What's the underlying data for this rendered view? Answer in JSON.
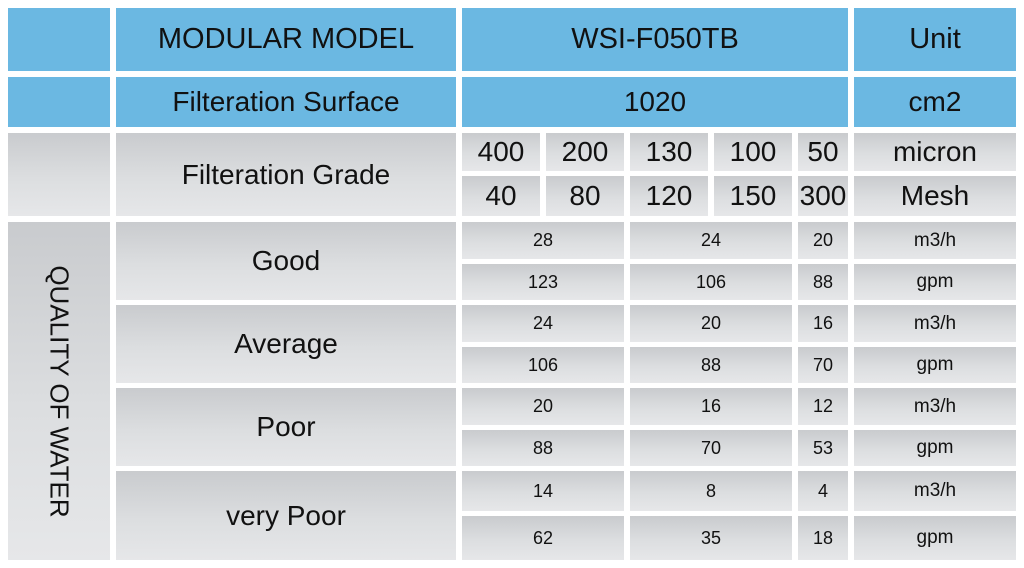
{
  "header": {
    "model_label": "MODULAR MODEL",
    "model_value": "WSI-F050TB",
    "unit_label": "Unit",
    "surface_label": "Filteration Surface",
    "surface_value": "1020",
    "surface_unit": "cm2"
  },
  "grade": {
    "label": "Filteration Grade",
    "micron": [
      "400",
      "200",
      "130",
      "100",
      "50"
    ],
    "micron_unit": "micron",
    "mesh": [
      "40",
      "80",
      "120",
      "150",
      "300"
    ],
    "mesh_unit": "Mesh"
  },
  "quality_label": "QUALITY OF WATER",
  "rows": [
    {
      "label": "Good",
      "m3h": [
        "28",
        "24",
        "20"
      ],
      "gpm": [
        "123",
        "106",
        "88"
      ]
    },
    {
      "label": "Average",
      "m3h": [
        "24",
        "20",
        "16"
      ],
      "gpm": [
        "106",
        "88",
        "70"
      ]
    },
    {
      "label": "Poor",
      "m3h": [
        "20",
        "16",
        "12"
      ],
      "gpm": [
        "88",
        "70",
        "53"
      ]
    },
    {
      "label": "very Poor",
      "m3h": [
        "14",
        "8",
        "4"
      ],
      "gpm": [
        "62",
        "35",
        "18"
      ]
    }
  ],
  "units": {
    "m3h": "m3/h",
    "gpm": "gpm"
  },
  "colors": {
    "header_blue": "#6bb8e2",
    "body_grey": "#dcdee0"
  }
}
